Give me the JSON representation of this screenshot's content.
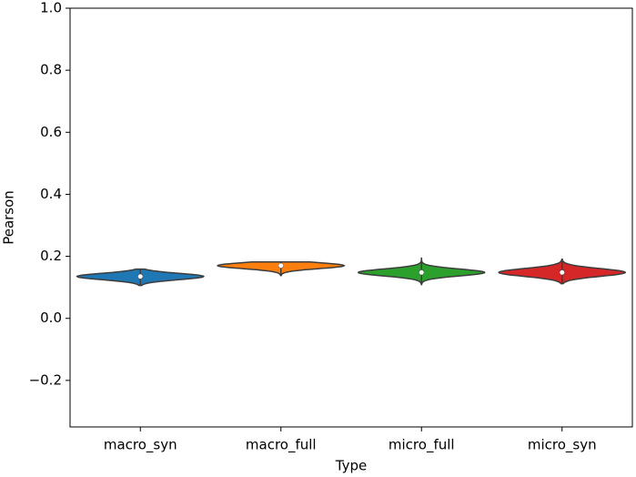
{
  "chart_data": {
    "type": "violin",
    "xlabel": "Type",
    "ylabel": "Pearson",
    "categories": [
      "macro_syn",
      "macro_full",
      "micro_full",
      "micro_syn"
    ],
    "series": [
      {
        "name": "macro_syn",
        "color": "#1f77b4",
        "min": 0.106,
        "q1": 0.128,
        "median": 0.135,
        "q3": 0.142,
        "max": 0.159
      },
      {
        "name": "macro_full",
        "color": "#ff7f0e",
        "min": 0.138,
        "q1": 0.163,
        "median": 0.17,
        "q3": 0.176,
        "max": 0.182
      },
      {
        "name": "micro_full",
        "color": "#2ca02c",
        "min": 0.109,
        "q1": 0.141,
        "median": 0.148,
        "q3": 0.156,
        "max": 0.194
      },
      {
        "name": "micro_syn",
        "color": "#d62728",
        "min": 0.112,
        "q1": 0.14,
        "median": 0.148,
        "q3": 0.157,
        "max": 0.191
      }
    ],
    "ylim": [
      -0.35,
      1.0
    ],
    "yticks": [
      {
        "value": -0.2,
        "label": "−0.2"
      },
      {
        "value": 0,
        "label": "0.0"
      },
      0.2,
      0.4,
      0.6,
      0.8,
      {
        "value": 1,
        "label": "1.0"
      }
    ]
  }
}
